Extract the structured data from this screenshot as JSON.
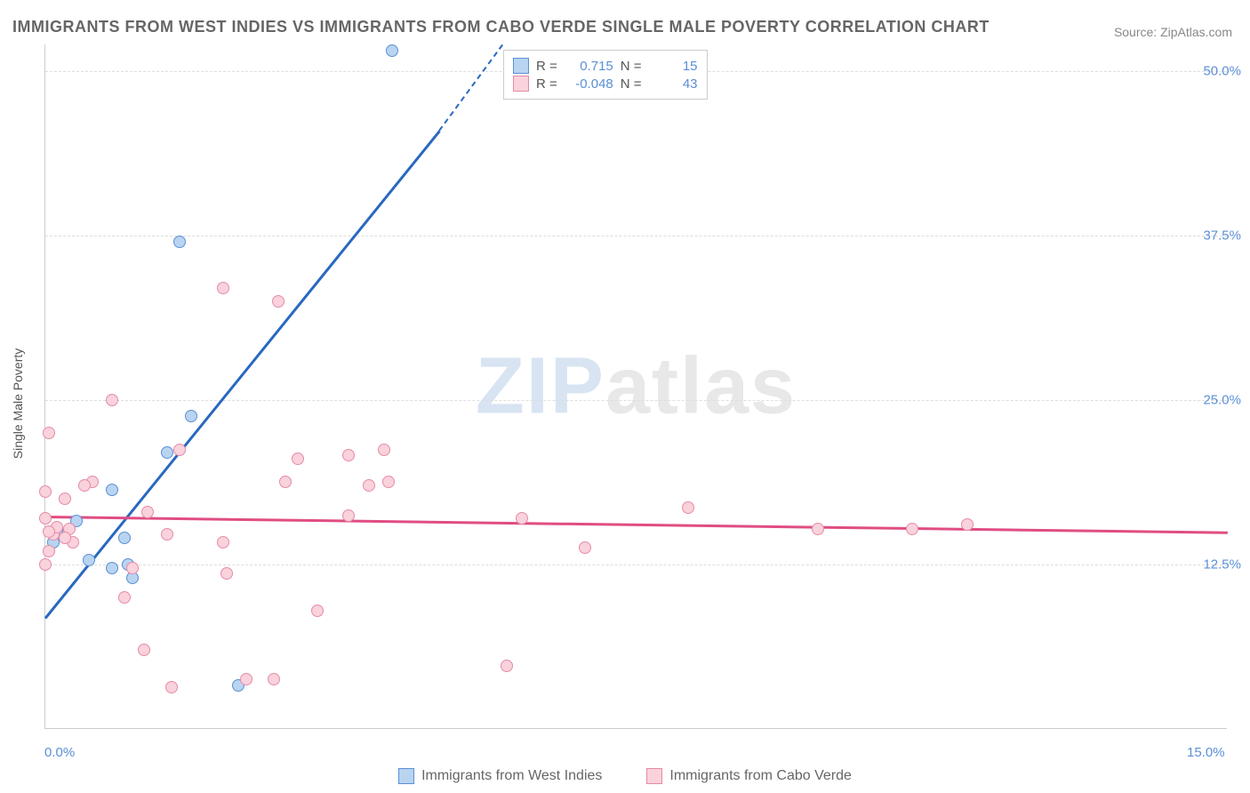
{
  "title": "IMMIGRANTS FROM WEST INDIES VS IMMIGRANTS FROM CABO VERDE SINGLE MALE POVERTY CORRELATION CHART",
  "source": "Source: ZipAtlas.com",
  "watermark_zip": "ZIP",
  "watermark_atlas": "atlas",
  "chart": {
    "type": "scatter",
    "y_label": "Single Male Poverty",
    "xlim": [
      0,
      15
    ],
    "ylim": [
      0,
      52
    ],
    "x_ticks": [
      {
        "v": 0,
        "label": "0.0%"
      },
      {
        "v": 15,
        "label": "15.0%"
      }
    ],
    "y_ticks": [
      {
        "v": 12.5,
        "label": "12.5%"
      },
      {
        "v": 25.0,
        "label": "25.0%"
      },
      {
        "v": 37.5,
        "label": "37.5%"
      },
      {
        "v": 50.0,
        "label": "50.0%"
      }
    ],
    "background_color": "#ffffff",
    "grid_color": "#dddddd",
    "series": [
      {
        "name": "Immigrants from West Indies",
        "fill": "#b8d4f0",
        "stroke": "#5b8fd6",
        "line_color": "#2968c0",
        "r_value": "0.715",
        "n_value": "15",
        "trend": {
          "x1": 0,
          "y1": 8.5,
          "x2": 5.0,
          "y2": 45.5,
          "dash_to_x": 5.8,
          "dash_to_y": 52
        },
        "points": [
          {
            "x": 4.4,
            "y": 51.5
          },
          {
            "x": 1.7,
            "y": 37.0
          },
          {
            "x": 1.85,
            "y": 23.8
          },
          {
            "x": 1.55,
            "y": 21.0
          },
          {
            "x": 0.85,
            "y": 18.2
          },
          {
            "x": 1.0,
            "y": 14.5
          },
          {
            "x": 0.55,
            "y": 12.8
          },
          {
            "x": 0.85,
            "y": 12.2
          },
          {
            "x": 1.05,
            "y": 12.5
          },
          {
            "x": 1.1,
            "y": 11.5
          },
          {
            "x": 2.45,
            "y": 3.3
          },
          {
            "x": 0.2,
            "y": 14.8
          },
          {
            "x": 0.15,
            "y": 15.1
          },
          {
            "x": 0.4,
            "y": 15.8
          },
          {
            "x": 0.1,
            "y": 14.2
          }
        ]
      },
      {
        "name": "Immigrants from Cabo Verde",
        "fill": "#f9d2dc",
        "stroke": "#e68aa6",
        "line_color": "#e04d82",
        "r_value": "-0.048",
        "n_value": "43",
        "trend": {
          "x1": 0,
          "y1": 16.2,
          "x2": 15,
          "y2": 15.0
        },
        "points": [
          {
            "x": 2.25,
            "y": 33.5
          },
          {
            "x": 2.95,
            "y": 32.5
          },
          {
            "x": 0.85,
            "y": 25.0
          },
          {
            "x": 0.05,
            "y": 22.5
          },
          {
            "x": 1.7,
            "y": 21.2
          },
          {
            "x": 3.2,
            "y": 20.5
          },
          {
            "x": 3.85,
            "y": 20.8
          },
          {
            "x": 4.3,
            "y": 21.2
          },
          {
            "x": 0.6,
            "y": 18.8
          },
          {
            "x": 0.0,
            "y": 18.0
          },
          {
            "x": 0.25,
            "y": 17.5
          },
          {
            "x": 3.05,
            "y": 18.8
          },
          {
            "x": 4.1,
            "y": 18.5
          },
          {
            "x": 4.35,
            "y": 18.8
          },
          {
            "x": 0.0,
            "y": 16.0
          },
          {
            "x": 1.3,
            "y": 16.5
          },
          {
            "x": 3.85,
            "y": 16.2
          },
          {
            "x": 6.05,
            "y": 16.0
          },
          {
            "x": 8.15,
            "y": 16.8
          },
          {
            "x": 9.8,
            "y": 15.2
          },
          {
            "x": 11.0,
            "y": 15.2
          },
          {
            "x": 11.7,
            "y": 15.5
          },
          {
            "x": 0.05,
            "y": 13.5
          },
          {
            "x": 0.35,
            "y": 14.2
          },
          {
            "x": 1.55,
            "y": 14.8
          },
          {
            "x": 2.25,
            "y": 14.2
          },
          {
            "x": 6.85,
            "y": 13.8
          },
          {
            "x": 0.0,
            "y": 12.5
          },
          {
            "x": 1.1,
            "y": 12.2
          },
          {
            "x": 2.3,
            "y": 11.8
          },
          {
            "x": 1.0,
            "y": 10.0
          },
          {
            "x": 3.45,
            "y": 9.0
          },
          {
            "x": 5.85,
            "y": 4.8
          },
          {
            "x": 2.55,
            "y": 3.8
          },
          {
            "x": 2.9,
            "y": 3.8
          },
          {
            "x": 1.25,
            "y": 6.0
          },
          {
            "x": 1.6,
            "y": 3.2
          },
          {
            "x": 0.1,
            "y": 14.8
          },
          {
            "x": 0.3,
            "y": 15.2
          },
          {
            "x": 0.5,
            "y": 18.5
          },
          {
            "x": 0.15,
            "y": 15.3
          },
          {
            "x": 0.05,
            "y": 15.0
          },
          {
            "x": 0.25,
            "y": 14.5
          }
        ]
      }
    ]
  },
  "stats_box": {
    "r_label": "R =",
    "n_label": "N ="
  }
}
